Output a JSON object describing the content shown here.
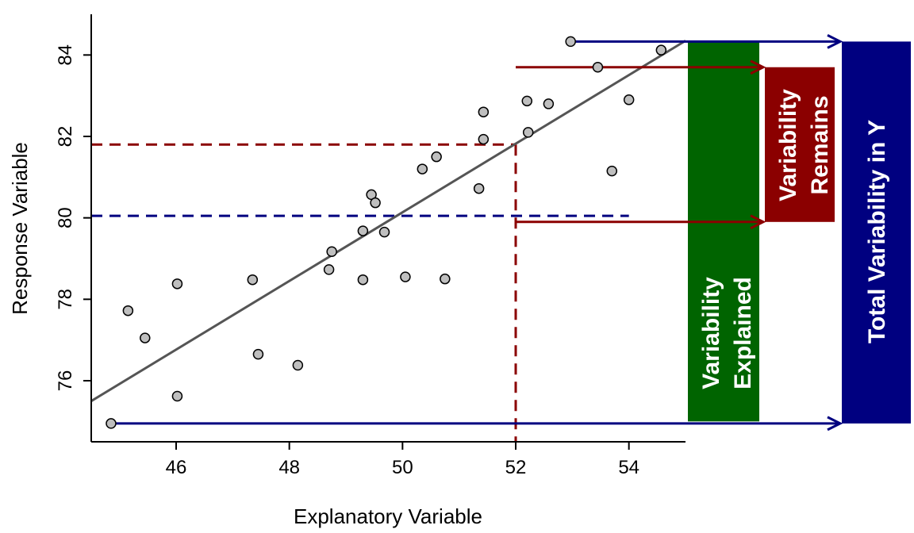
{
  "chart_data": {
    "type": "scatter",
    "title": "",
    "xlabel": "Explanatory Variable",
    "ylabel": "Response Variable",
    "xlim": [
      44.5,
      55
    ],
    "ylim": [
      74.5,
      85
    ],
    "x_ticks": [
      46,
      48,
      50,
      52,
      54
    ],
    "y_ticks": [
      76,
      78,
      80,
      82,
      84
    ],
    "grid": false,
    "points": [
      {
        "x": 44.85,
        "y": 74.95
      },
      {
        "x": 45.15,
        "y": 77.72
      },
      {
        "x": 45.45,
        "y": 77.05
      },
      {
        "x": 46.02,
        "y": 78.38
      },
      {
        "x": 46.02,
        "y": 75.62
      },
      {
        "x": 47.35,
        "y": 78.48
      },
      {
        "x": 47.45,
        "y": 76.65
      },
      {
        "x": 48.15,
        "y": 76.38
      },
      {
        "x": 48.7,
        "y": 78.73
      },
      {
        "x": 48.75,
        "y": 79.17
      },
      {
        "x": 49.3,
        "y": 79.68
      },
      {
        "x": 49.3,
        "y": 78.48
      },
      {
        "x": 49.45,
        "y": 80.57
      },
      {
        "x": 49.52,
        "y": 80.37
      },
      {
        "x": 49.68,
        "y": 79.65
      },
      {
        "x": 50.05,
        "y": 78.55
      },
      {
        "x": 50.35,
        "y": 81.2
      },
      {
        "x": 50.6,
        "y": 81.5
      },
      {
        "x": 50.75,
        "y": 78.5
      },
      {
        "x": 51.35,
        "y": 80.72
      },
      {
        "x": 51.43,
        "y": 81.93
      },
      {
        "x": 51.43,
        "y": 82.6
      },
      {
        "x": 52.2,
        "y": 82.87
      },
      {
        "x": 52.22,
        "y": 82.1
      },
      {
        "x": 52.58,
        "y": 82.8
      },
      {
        "x": 52.97,
        "y": 84.33
      },
      {
        "x": 53.45,
        "y": 83.7
      },
      {
        "x": 53.7,
        "y": 81.15
      },
      {
        "x": 54.0,
        "y": 82.9
      },
      {
        "x": 54.57,
        "y": 84.12
      }
    ],
    "regression_line": {
      "x": [
        44.5,
        55.0
      ],
      "y": [
        75.5,
        84.35
      ],
      "color": "#555555"
    },
    "mean_y": 80.05,
    "x_reference": 52.0,
    "predicted_y_at_reference": 81.8,
    "colors": {
      "point_fill": "#bfbfbf",
      "dark_red": "#8b0000",
      "navy": "#000080",
      "green": "#006400"
    },
    "annotations": {
      "explained": {
        "label_line1": "Variability",
        "label_line2": "Explained",
        "y_from": 75.0,
        "y_to": 84.35,
        "color": "#006400"
      },
      "remains": {
        "label_line1": "Variability",
        "label_line2": "Remains",
        "y_from": 79.9,
        "y_to": 83.7,
        "color": "#8b0000"
      },
      "total": {
        "label": "Total Variability in Y",
        "y_from": 74.95,
        "y_to": 84.33,
        "color": "#000080"
      }
    }
  }
}
